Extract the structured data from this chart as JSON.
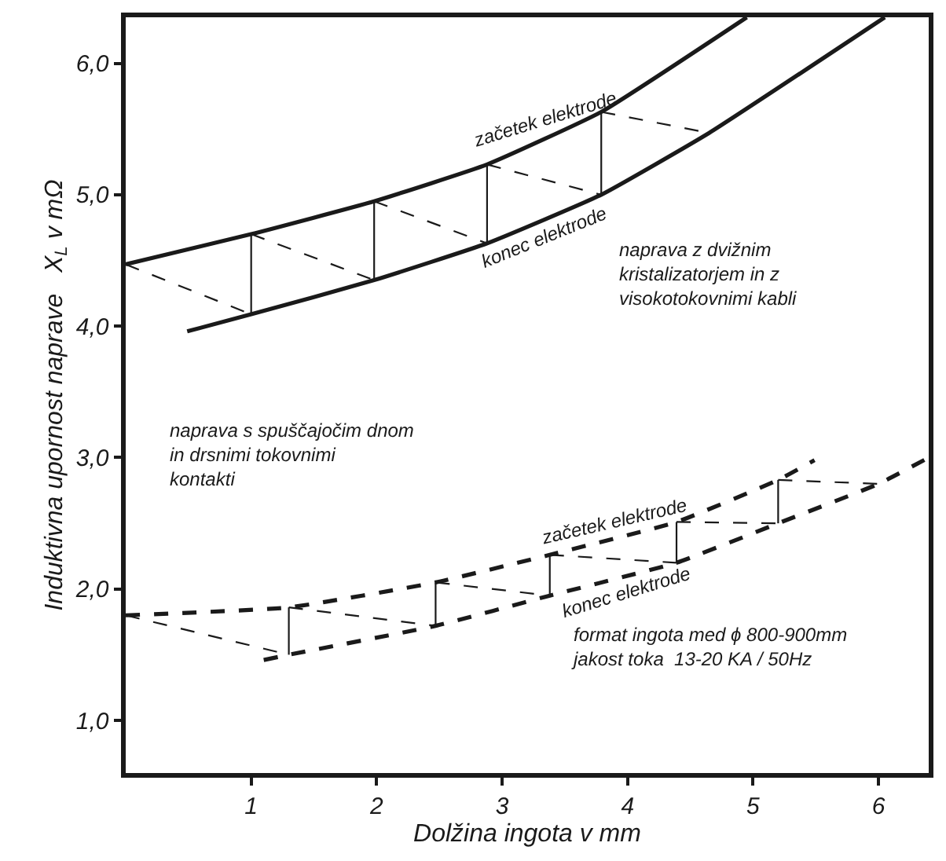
{
  "chart_data": {
    "type": "line",
    "xlabel": "Dolžina ingota v mm",
    "ylabel": "Induktivna upornost naprave   X$_{L}$ v mΩ",
    "xlim": [
      0,
      6.4
    ],
    "ylim": [
      0.6,
      6.35
    ],
    "xticks": [
      1,
      2,
      3,
      4,
      5,
      6
    ],
    "yticks": [
      {
        "value": 1,
        "label": "1,0"
      },
      {
        "value": 2,
        "label": "2,0"
      },
      {
        "value": 3,
        "label": "3,0"
      },
      {
        "value": 4,
        "label": "4,0"
      },
      {
        "value": 5,
        "label": "5,0"
      },
      {
        "value": 6,
        "label": "6,0"
      }
    ],
    "legend": false,
    "marker": "none",
    "series": [
      {
        "name": "začetek elektrode",
        "color": "#1a1a1a",
        "line_style": "solid",
        "x": [
          0,
          1.0,
          1.98,
          2.88,
          3.79,
          4.95
        ],
        "values": [
          4.47,
          4.7,
          4.95,
          5.23,
          5.63,
          6.35
        ]
      },
      {
        "name": "konec elektrode",
        "color": "#1a1a1a",
        "line_style": "solid",
        "x": [
          0.49,
          1.0,
          1.98,
          2.88,
          3.79,
          4.65,
          6.05
        ],
        "values": [
          3.96,
          4.09,
          4.35,
          4.63,
          5.0,
          5.47,
          6.35
        ]
      },
      {
        "color": "#1a1a1a",
        "line_style": "dashed",
        "x": [
          0,
          1.0
        ],
        "values": [
          4.47,
          4.09
        ]
      },
      {
        "color": "#1a1a1a",
        "line_style": "solid",
        "x": [
          1.0,
          1.0
        ],
        "values": [
          4.09,
          4.7
        ]
      },
      {
        "color": "#1a1a1a",
        "line_style": "dashed",
        "x": [
          1.0,
          1.98
        ],
        "values": [
          4.7,
          4.35
        ]
      },
      {
        "color": "#1a1a1a",
        "line_style": "solid",
        "x": [
          1.98,
          1.98
        ],
        "values": [
          4.35,
          4.95
        ]
      },
      {
        "color": "#1a1a1a",
        "line_style": "dashed",
        "x": [
          1.98,
          2.88
        ],
        "values": [
          4.95,
          4.63
        ]
      },
      {
        "color": "#1a1a1a",
        "line_style": "solid",
        "x": [
          2.88,
          2.88
        ],
        "values": [
          4.63,
          5.23
        ]
      },
      {
        "color": "#1a1a1a",
        "line_style": "dashed",
        "x": [
          2.88,
          3.79
        ],
        "values": [
          5.23,
          5.0
        ]
      },
      {
        "color": "#1a1a1a",
        "line_style": "solid",
        "x": [
          3.79,
          3.79
        ],
        "values": [
          5.0,
          5.63
        ]
      },
      {
        "color": "#1a1a1a",
        "line_style": "dashed",
        "x": [
          3.79,
          4.65
        ],
        "values": [
          5.63,
          5.47
        ]
      },
      {
        "name": "začetek elektrode",
        "color": "#1a1a1a",
        "line_style": "dashed",
        "x": [
          0,
          1.3,
          2.47,
          3.38,
          4.39,
          5.2,
          5.49
        ],
        "values": [
          1.8,
          1.86,
          2.05,
          2.26,
          2.51,
          2.83,
          2.98
        ]
      },
      {
        "name": "konec elektrode",
        "color": "#1a1a1a",
        "line_style": "dashed",
        "x": [
          1.1,
          1.3,
          2.47,
          3.38,
          4.39,
          5.2,
          6.0,
          6.4
        ],
        "values": [
          1.46,
          1.5,
          1.72,
          1.95,
          2.2,
          2.5,
          2.8,
          3.0
        ]
      },
      {
        "color": "#1a1a1a",
        "line_style": "dashed",
        "x": [
          0,
          1.3
        ],
        "values": [
          1.8,
          1.5
        ]
      },
      {
        "color": "#1a1a1a",
        "line_style": "solid",
        "x": [
          1.3,
          1.3
        ],
        "values": [
          1.5,
          1.86
        ]
      },
      {
        "color": "#1a1a1a",
        "line_style": "dashed",
        "x": [
          1.3,
          2.47
        ],
        "values": [
          1.86,
          1.72
        ]
      },
      {
        "color": "#1a1a1a",
        "line_style": "solid",
        "x": [
          2.47,
          2.47
        ],
        "values": [
          1.72,
          2.05
        ]
      },
      {
        "color": "#1a1a1a",
        "line_style": "dashed",
        "x": [
          2.47,
          3.38
        ],
        "values": [
          2.05,
          1.95
        ]
      },
      {
        "color": "#1a1a1a",
        "line_style": "solid",
        "x": [
          3.38,
          3.38
        ],
        "values": [
          1.95,
          2.26
        ]
      },
      {
        "color": "#1a1a1a",
        "line_style": "dashed",
        "x": [
          3.38,
          4.39
        ],
        "values": [
          2.26,
          2.2
        ]
      },
      {
        "color": "#1a1a1a",
        "line_style": "solid",
        "x": [
          4.39,
          4.39
        ],
        "values": [
          2.2,
          2.51
        ]
      },
      {
        "color": "#1a1a1a",
        "line_style": "dashed",
        "x": [
          4.39,
          5.2
        ],
        "values": [
          2.51,
          2.5
        ]
      },
      {
        "color": "#1a1a1a",
        "line_style": "solid",
        "x": [
          5.2,
          5.2
        ],
        "values": [
          2.5,
          2.83
        ]
      },
      {
        "color": "#1a1a1a",
        "line_style": "dashed",
        "x": [
          5.2,
          6.0
        ],
        "values": [
          2.83,
          2.8
        ]
      }
    ],
    "annotations": [
      "naprava z dvižnim\nkristalizatorjem in z\nvisokotokovnimi kabli",
      "naprava s spuščajočim dnom\nin drsnimi tokovnimi\nkontakti",
      "format ingota med ɸ 800-900mm\njakost toka  13-20 KA / 50Hz"
    ]
  }
}
